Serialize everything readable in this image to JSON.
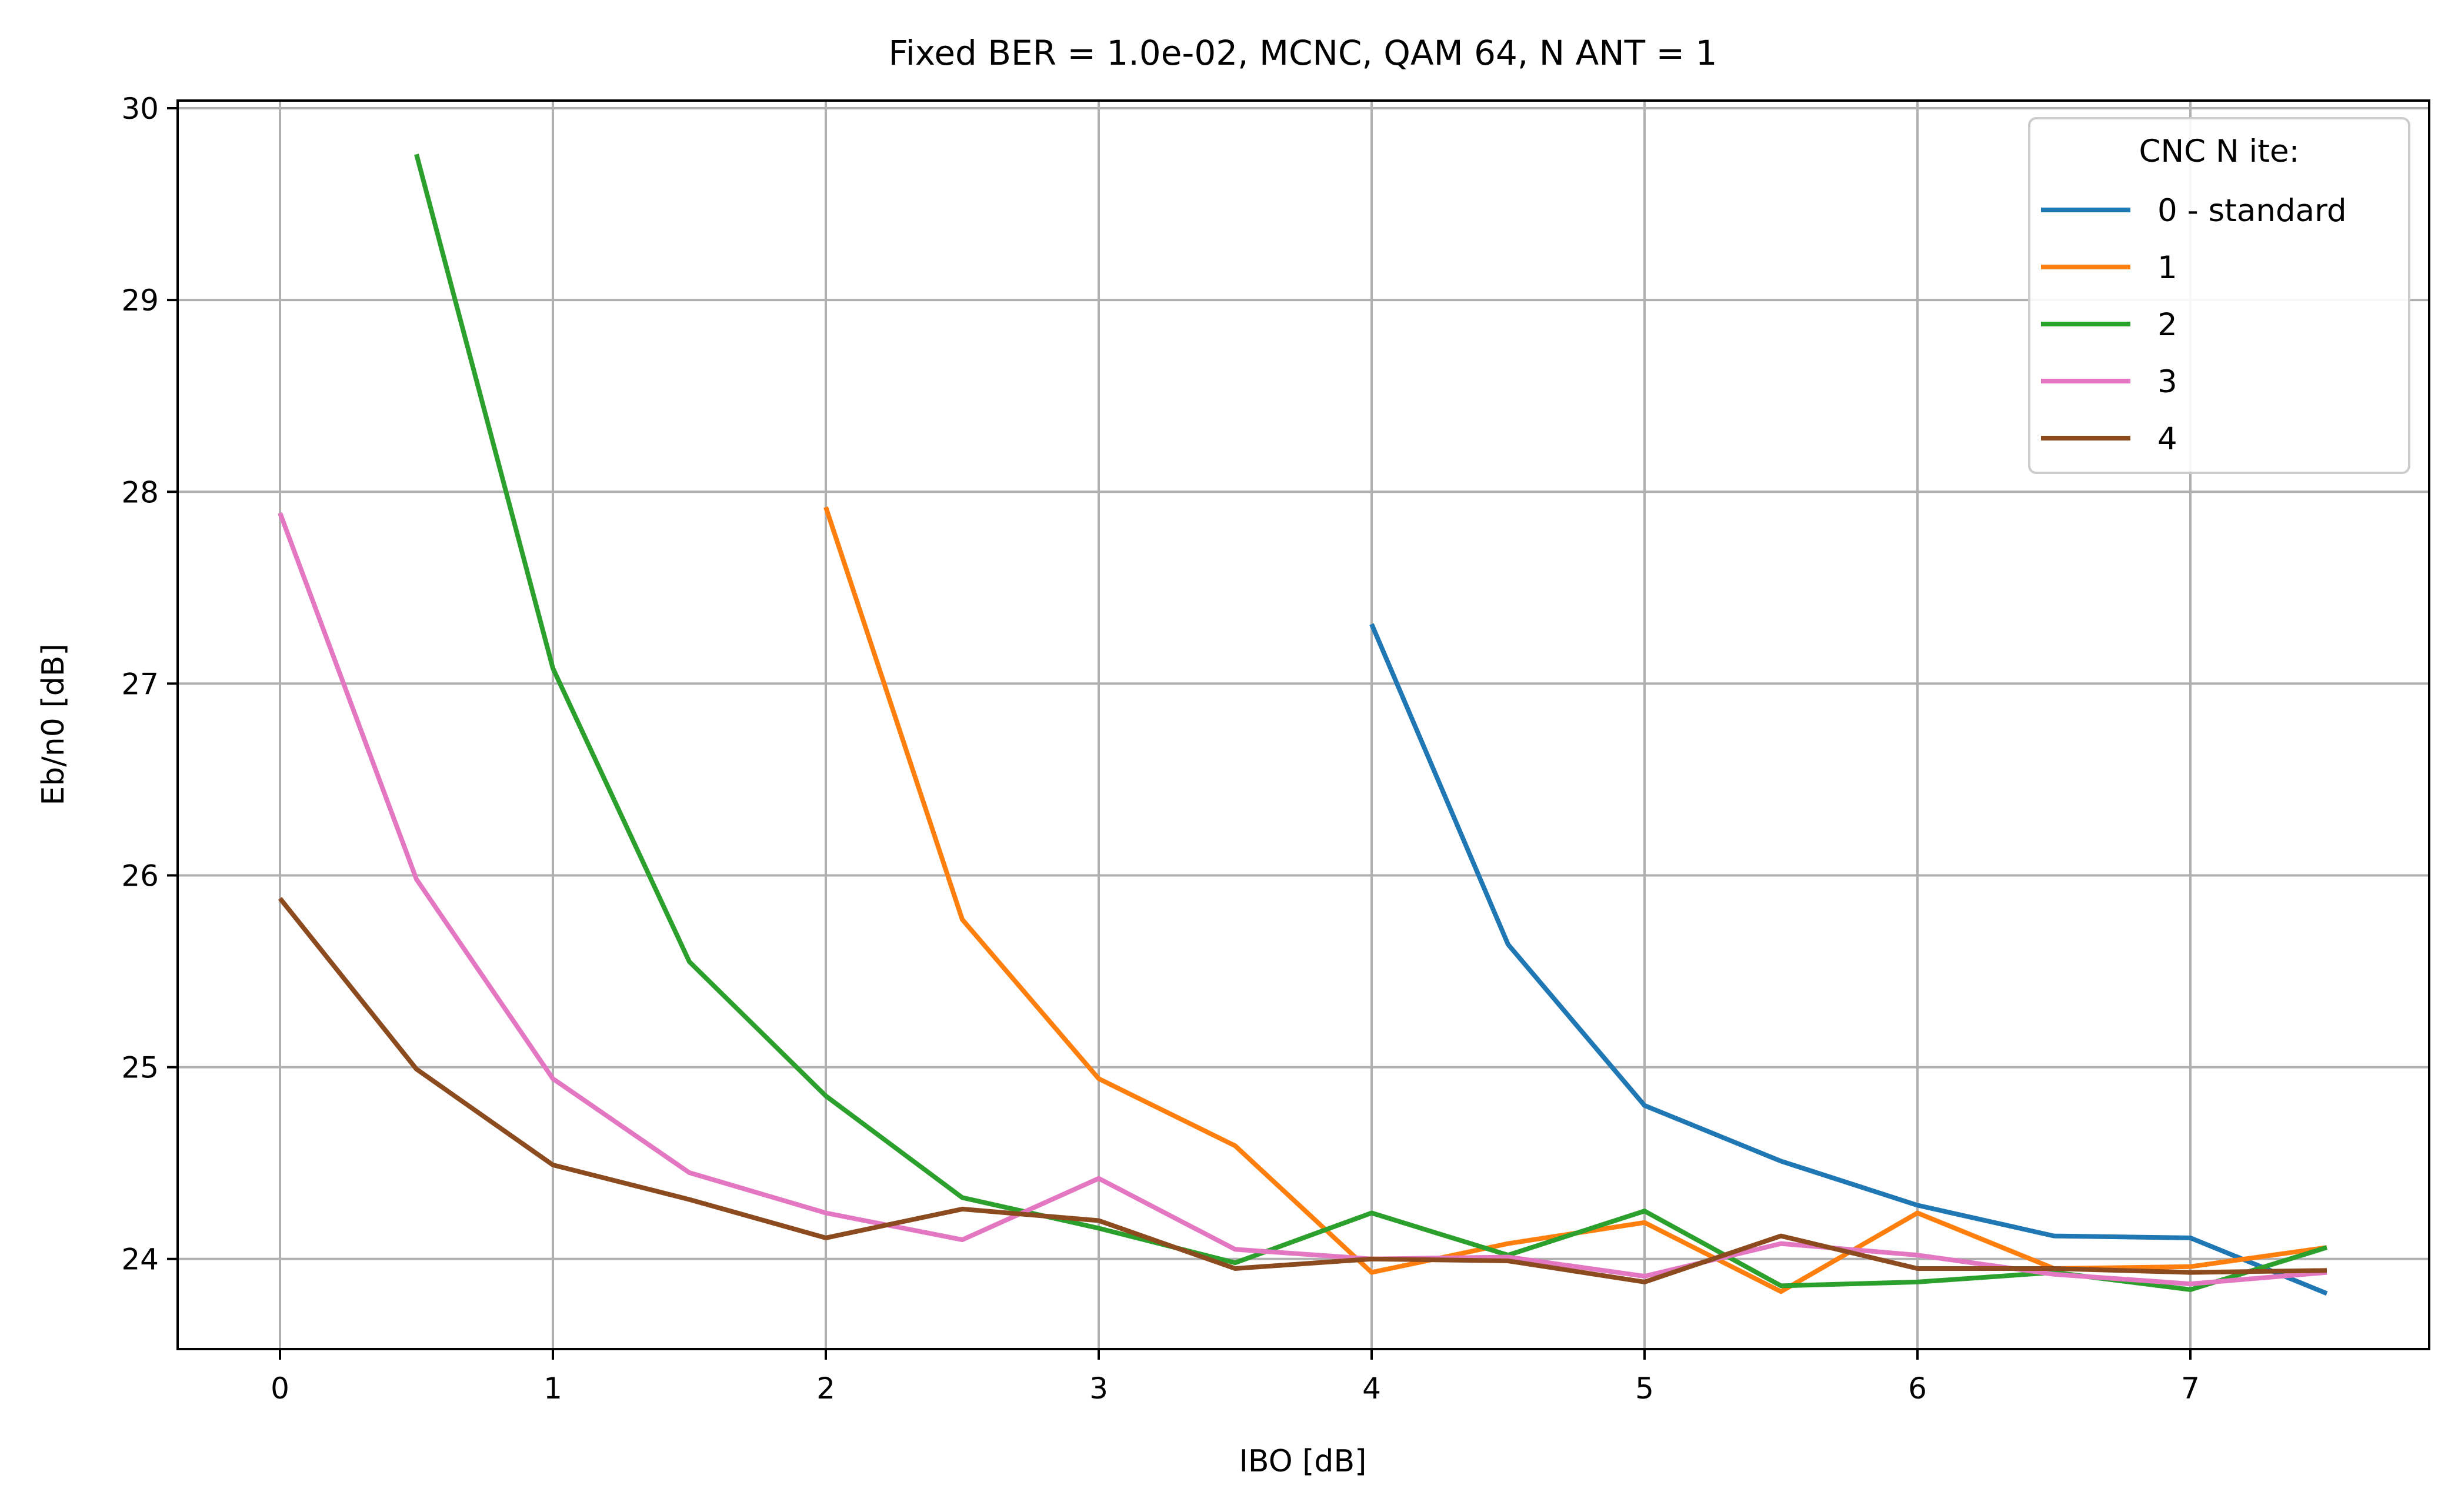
{
  "chart_data": {
    "type": "line",
    "title": "Fixed BER = 1.0e-02, MCNC, QAM 64, N ANT = 1",
    "xlabel": "IBO [dB]",
    "ylabel": "Eb/n0 [dB]",
    "xlim": [
      -0.375,
      7.875
    ],
    "ylim": [
      23.53,
      30.04
    ],
    "xticks": [
      "0",
      "1",
      "2",
      "3",
      "4",
      "5",
      "6",
      "7"
    ],
    "xtick_values": [
      0,
      1,
      2,
      3,
      4,
      5,
      6,
      7
    ],
    "yticks": [
      "24",
      "25",
      "26",
      "27",
      "28",
      "29",
      "30"
    ],
    "ytick_values": [
      24,
      25,
      26,
      27,
      28,
      29,
      30
    ],
    "grid": true,
    "legend": {
      "title": "CNC N ite:",
      "placement": "top-right"
    },
    "series": [
      {
        "name": "0 - standard",
        "color": "#1f77b4",
        "x": [
          4.0,
          4.5,
          5.0,
          5.5,
          6.0,
          6.5,
          7.0,
          7.5
        ],
        "y": [
          27.31,
          25.64,
          24.8,
          24.51,
          24.28,
          24.12,
          24.11,
          23.82
        ]
      },
      {
        "name": "1",
        "color": "#ff7f0e",
        "x": [
          2.0,
          2.5,
          3.0,
          3.5,
          4.0,
          4.5,
          5.0,
          5.5,
          6.0,
          6.5,
          7.0,
          7.5
        ],
        "y": [
          27.92,
          25.77,
          24.94,
          24.59,
          23.93,
          24.08,
          24.19,
          23.83,
          24.24,
          23.95,
          23.96,
          24.06
        ]
      },
      {
        "name": "2",
        "color": "#2ca02c",
        "x": [
          0.5,
          1.0,
          1.5,
          2.0,
          2.5,
          3.0,
          3.5,
          4.0,
          4.5,
          5.0,
          5.5,
          6.0,
          6.5,
          7.0,
          7.5
        ],
        "y": [
          29.76,
          27.08,
          25.55,
          24.85,
          24.32,
          24.16,
          23.98,
          24.24,
          24.02,
          24.25,
          23.86,
          23.88,
          23.93,
          23.84,
          24.06
        ]
      },
      {
        "name": "3",
        "color": "#e377c2",
        "x": [
          0.0,
          0.5,
          1.0,
          1.5,
          2.0,
          2.5,
          3.0,
          3.5,
          4.0,
          4.5,
          5.0,
          5.5,
          6.0,
          6.5,
          7.0,
          7.5
        ],
        "y": [
          27.89,
          25.98,
          24.94,
          24.45,
          24.24,
          24.1,
          24.42,
          24.05,
          24.0,
          24.01,
          23.91,
          24.08,
          24.02,
          23.92,
          23.87,
          23.93
        ]
      },
      {
        "name": "4",
        "color": "#8c4a1f",
        "x": [
          0.0,
          0.5,
          1.0,
          1.5,
          2.0,
          2.5,
          3.0,
          3.5,
          4.0,
          4.5,
          5.0,
          5.5,
          6.0,
          6.5,
          7.0,
          7.5
        ],
        "y": [
          25.88,
          24.99,
          24.49,
          24.31,
          24.11,
          24.26,
          24.2,
          23.95,
          24.0,
          23.99,
          23.88,
          24.12,
          23.95,
          23.95,
          23.93,
          23.94
        ]
      }
    ]
  }
}
